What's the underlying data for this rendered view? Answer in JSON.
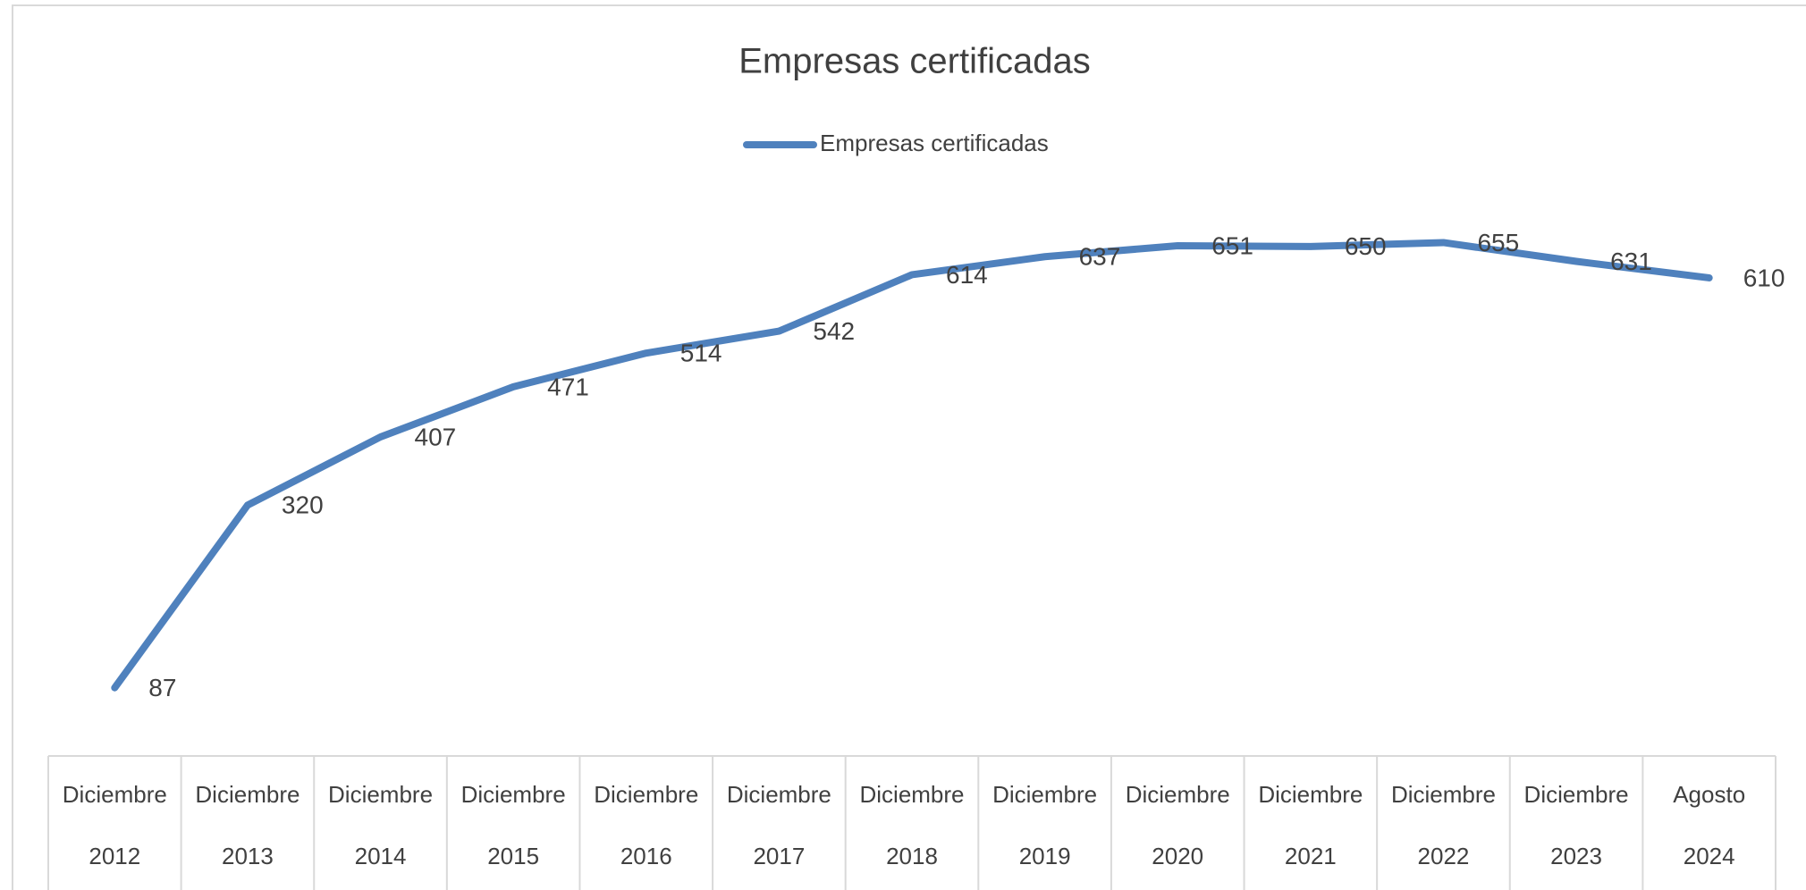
{
  "chart_data": {
    "type": "line",
    "title": "Empresas certificadas",
    "categories": [
      [
        "Diciembre",
        "2012"
      ],
      [
        "Diciembre",
        "2013"
      ],
      [
        "Diciembre",
        "2014"
      ],
      [
        "Diciembre",
        "2015"
      ],
      [
        "Diciembre",
        "2016"
      ],
      [
        "Diciembre",
        "2017"
      ],
      [
        "Diciembre",
        "2018"
      ],
      [
        "Diciembre",
        "2019"
      ],
      [
        "Diciembre",
        "2020"
      ],
      [
        "Diciembre",
        "2021"
      ],
      [
        "Diciembre",
        "2022"
      ],
      [
        "Diciembre",
        "2023"
      ],
      [
        "Agosto",
        "2024"
      ]
    ],
    "series": [
      {
        "name": "Empresas certificadas",
        "color": "#4f81bd",
        "values": [
          87,
          320,
          407,
          471,
          514,
          542,
          614,
          637,
          651,
          650,
          655,
          631,
          610
        ]
      }
    ],
    "ylim": [
      0,
      700
    ],
    "legend": "top"
  }
}
